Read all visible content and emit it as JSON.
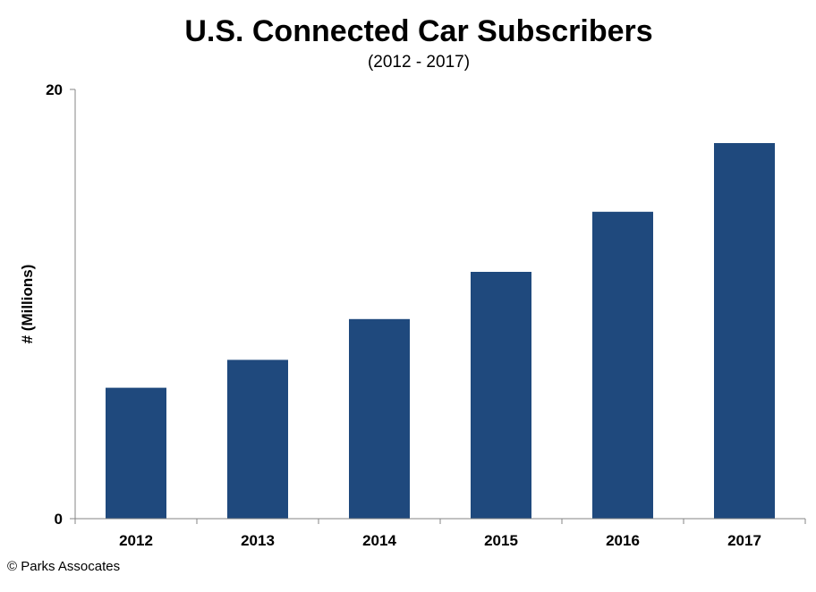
{
  "chart_data": {
    "type": "bar",
    "title": "U.S. Connected Car Subscribers",
    "subtitle": "(2012 - 2017)",
    "xlabel": "",
    "ylabel": "# (Millions)",
    "categories": [
      "2012",
      "2013",
      "2014",
      "2015",
      "2016",
      "2017"
    ],
    "series": [
      {
        "values": [
          6.1,
          7.4,
          9.3,
          11.5,
          14.3,
          17.5
        ]
      }
    ],
    "ylim": [
      0,
      20
    ],
    "yticks": [
      0,
      20
    ],
    "ytick_labels": [
      "0",
      "20"
    ],
    "grid": false,
    "legend": "none",
    "bar_color": "#1f497d"
  },
  "footer": {
    "credit": "© Parks Assocates"
  }
}
